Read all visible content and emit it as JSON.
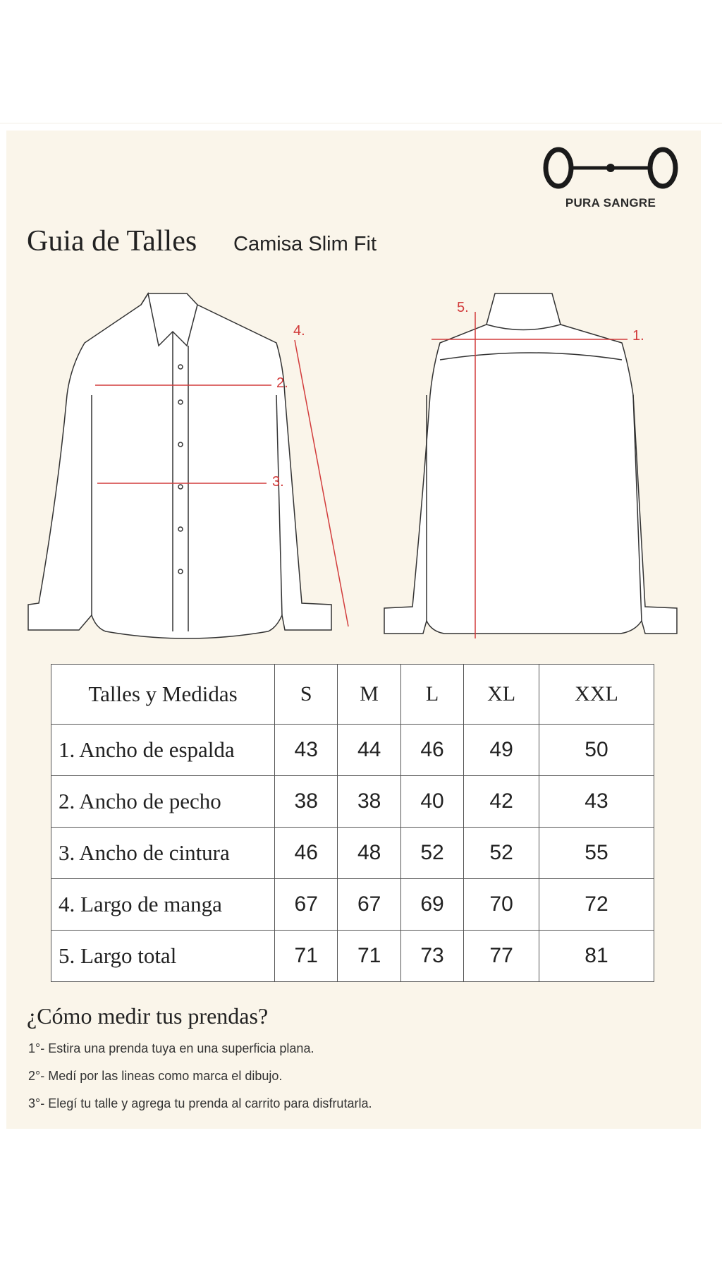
{
  "brand": {
    "name": "PURA SANGRE"
  },
  "header": {
    "title": "Guia de Talles",
    "subtitle": "Camisa Slim Fit"
  },
  "diagram": {
    "labels": [
      "1.",
      "2.",
      "3.",
      "4.",
      "5."
    ],
    "accent_color": "#d23c3c"
  },
  "table": {
    "header": "Talles y Medidas",
    "sizes": [
      "S",
      "M",
      "L",
      "XL",
      "XXL"
    ],
    "rows": [
      {
        "label": "1. Ancho de espalda",
        "values": [
          "43",
          "44",
          "46",
          "49",
          "50"
        ]
      },
      {
        "label": "2. Ancho de pecho",
        "values": [
          "38",
          "38",
          "40",
          "42",
          "43"
        ]
      },
      {
        "label": "3. Ancho de cintura",
        "values": [
          "46",
          "48",
          "52",
          "52",
          "55"
        ]
      },
      {
        "label": "4. Largo de manga",
        "values": [
          "67",
          "67",
          "69",
          "70",
          "72"
        ]
      },
      {
        "label": "5. Largo total",
        "values": [
          "71",
          "71",
          "73",
          "77",
          "81"
        ]
      }
    ]
  },
  "instructions": {
    "title": "¿Cómo medir tus prendas?",
    "steps": [
      "1°- Estira una prenda tuya en una superficia plana.",
      "2°- Medí por las lineas como marca el dibujo.",
      "3°- Elegí tu talle y agrega tu prenda al carrito para disfrutarla."
    ]
  }
}
